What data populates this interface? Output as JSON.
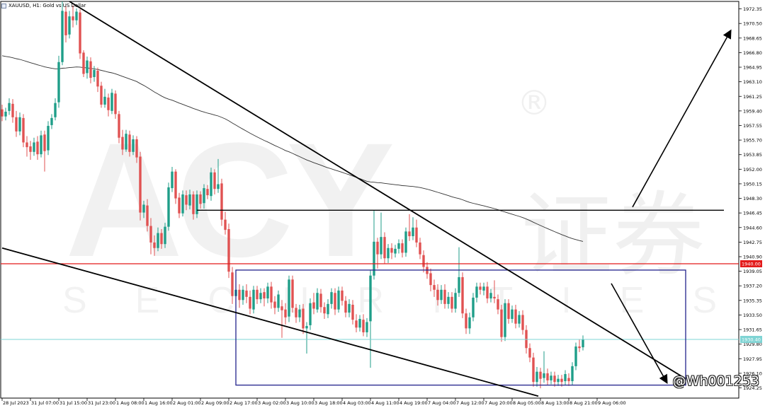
{
  "header": {
    "title": "XAUUSD, H1:  Gold vs US Dollar"
  },
  "watermark": {
    "brand": "ACY",
    "cn": "证券",
    "sub": "SECURITIES",
    "reg": "®",
    "user": "@Wh001253"
  },
  "colors": {
    "up": "#1f9e89",
    "down": "#e05252",
    "red_line": "#e31b1b",
    "box": "#22228c",
    "cyan_line": "#7fd4d4",
    "ma": "#333333",
    "trend": "#000000"
  },
  "chart_data": {
    "type": "candlestick",
    "symbol": "XAUUSD",
    "timeframe": "H1",
    "ylim": [
      1922.95,
      1973.3
    ],
    "y_ticks": [
      "1972.35",
      "1970.50",
      "1968.65",
      "1966.80",
      "1964.95",
      "1963.10",
      "1961.25",
      "1959.40",
      "1957.55",
      "1955.70",
      "1953.85",
      "1952.00",
      "1950.15",
      "1948.30",
      "1946.45",
      "1944.60",
      "1942.75",
      "1940.90",
      "1939.05",
      "1937.20",
      "1935.35",
      "1933.50",
      "1931.65",
      "1929.80",
      "1927.95",
      "1926.10",
      "1924.25"
    ],
    "x_ticks": [
      "28 Jul 2023",
      "31 Jul 07:00",
      "31 Jul 15:00",
      "31 Jul 23:00",
      "1 Aug 08:00",
      "1 Aug 16:00",
      "2 Aug 01:00",
      "2 Aug 09:00",
      "2 Aug 17:00",
      "3 Aug 02:00",
      "3 Aug 10:00",
      "3 Aug 18:00",
      "4 Aug 03:00",
      "4 Aug 11:00",
      "4 Aug 19:00",
      "7 Aug 04:00",
      "7 Aug 12:00",
      "7 Aug 20:00",
      "8 Aug 05:00",
      "8 Aug 13:00",
      "8 Aug 21:00",
      "9 Aug 06:00"
    ],
    "price_labels": [
      {
        "value": 1940.0,
        "text": "1940.00",
        "color": "red"
      },
      {
        "value": 1930.4,
        "text": "1930.40",
        "color": "cyan"
      }
    ],
    "levels": {
      "red_horizontal": 1940.0,
      "resistance": 1946.8,
      "current": 1930.4
    },
    "range_box": {
      "top": 1939.2,
      "bottom": 1924.6
    },
    "candles": [
      [
        1959.6,
        1958.7,
        1960.2,
        1958.1
      ],
      [
        1958.7,
        1959.3,
        1959.8,
        1958.2
      ],
      [
        1959.4,
        1960.4,
        1961.0,
        1958.9
      ],
      [
        1960.3,
        1958.6,
        1960.9,
        1957.9
      ],
      [
        1958.6,
        1956.8,
        1959.4,
        1956.1
      ],
      [
        1956.8,
        1958.6,
        1959.2,
        1956.3
      ],
      [
        1958.5,
        1955.4,
        1959.0,
        1954.8
      ],
      [
        1955.4,
        1954.8,
        1956.2,
        1953.6
      ],
      [
        1954.9,
        1954.2,
        1955.6,
        1953.2
      ],
      [
        1954.2,
        1955.4,
        1956.0,
        1953.7
      ],
      [
        1955.5,
        1953.9,
        1956.2,
        1953.2
      ],
      [
        1953.9,
        1956.3,
        1956.9,
        1953.5
      ],
      [
        1956.4,
        1954.3,
        1956.9,
        1951.7
      ],
      [
        1954.4,
        1957.5,
        1958.1,
        1953.8
      ],
      [
        1957.6,
        1958.5,
        1959.0,
        1957.1
      ],
      [
        1958.6,
        1960.4,
        1961.0,
        1958.2
      ],
      [
        1960.5,
        1965.6,
        1966.4,
        1959.8
      ],
      [
        1965.6,
        1972.1,
        1973.3,
        1965.2
      ],
      [
        1972.0,
        1969.0,
        1972.7,
        1968.1
      ],
      [
        1969.1,
        1971.4,
        1972.1,
        1968.6
      ],
      [
        1971.4,
        1970.9,
        1972.8,
        1970.0
      ],
      [
        1970.9,
        1972.0,
        1972.4,
        1970.3
      ],
      [
        1971.9,
        1966.7,
        1972.3,
        1966.0
      ],
      [
        1966.8,
        1964.1,
        1967.1,
        1963.7
      ],
      [
        1964.2,
        1965.8,
        1966.3,
        1963.5
      ],
      [
        1965.7,
        1963.6,
        1966.2,
        1962.9
      ],
      [
        1963.7,
        1964.6,
        1965.1,
        1963.1
      ],
      [
        1964.5,
        1962.5,
        1964.9,
        1961.8
      ],
      [
        1962.6,
        1960.2,
        1963.1,
        1959.8
      ],
      [
        1960.2,
        1961.2,
        1962.2,
        1959.8
      ],
      [
        1961.1,
        1959.5,
        1961.6,
        1958.7
      ],
      [
        1959.4,
        1961.7,
        1962.2,
        1959.0
      ],
      [
        1961.6,
        1959.0,
        1962.0,
        1958.4
      ],
      [
        1959.0,
        1956.0,
        1959.4,
        1955.3
      ],
      [
        1956.1,
        1954.5,
        1957.0,
        1953.8
      ],
      [
        1954.5,
        1956.5,
        1957.0,
        1954.2
      ],
      [
        1956.4,
        1954.2,
        1956.9,
        1953.6
      ],
      [
        1954.2,
        1955.8,
        1956.3,
        1953.8
      ],
      [
        1955.8,
        1953.5,
        1956.2,
        1952.8
      ],
      [
        1953.6,
        1946.5,
        1954.2,
        1945.5
      ],
      [
        1946.5,
        1947.5,
        1948.0,
        1945.8
      ],
      [
        1947.4,
        1944.8,
        1948.2,
        1944.1
      ],
      [
        1944.8,
        1942.7,
        1945.8,
        1941.2
      ],
      [
        1942.7,
        1942.0,
        1943.6,
        1941.0
      ],
      [
        1942.0,
        1943.9,
        1944.6,
        1941.6
      ],
      [
        1943.9,
        1942.5,
        1944.4,
        1941.9
      ],
      [
        1942.5,
        1944.7,
        1945.2,
        1942.0
      ],
      [
        1944.7,
        1949.7,
        1950.3,
        1944.2
      ],
      [
        1949.6,
        1951.7,
        1952.3,
        1949.1
      ],
      [
        1951.7,
        1948.3,
        1952.0,
        1947.6
      ],
      [
        1948.4,
        1946.4,
        1949.0,
        1945.8
      ],
      [
        1946.4,
        1948.8,
        1949.3,
        1946.0
      ],
      [
        1948.7,
        1947.5,
        1949.3,
        1946.8
      ],
      [
        1947.4,
        1948.8,
        1949.4,
        1946.9
      ],
      [
        1948.8,
        1946.3,
        1949.2,
        1945.6
      ],
      [
        1946.3,
        1948.8,
        1949.3,
        1945.8
      ],
      [
        1948.8,
        1947.6,
        1949.2,
        1947.0
      ],
      [
        1947.7,
        1949.6,
        1950.1,
        1947.0
      ],
      [
        1949.5,
        1948.7,
        1950.0,
        1948.2
      ],
      [
        1948.6,
        1951.6,
        1952.2,
        1948.0
      ],
      [
        1951.6,
        1949.5,
        1952.0,
        1948.8
      ],
      [
        1949.5,
        1950.1,
        1953.3,
        1949.0
      ],
      [
        1950.2,
        1945.6,
        1950.8,
        1944.8
      ],
      [
        1945.6,
        1944.3,
        1946.6,
        1943.7
      ],
      [
        1944.4,
        1939.0,
        1945.1,
        1938.2
      ],
      [
        1938.9,
        1935.9,
        1939.6,
        1934.9
      ],
      [
        1935.9,
        1936.7,
        1937.3,
        1935.2
      ],
      [
        1936.7,
        1935.4,
        1937.4,
        1934.4
      ],
      [
        1935.4,
        1936.7,
        1937.2,
        1934.8
      ],
      [
        1936.6,
        1935.8,
        1937.4,
        1935.0
      ],
      [
        1935.8,
        1934.3,
        1936.6,
        1933.6
      ],
      [
        1934.2,
        1936.7,
        1937.2,
        1933.7
      ],
      [
        1936.7,
        1935.5,
        1937.2,
        1934.9
      ],
      [
        1935.5,
        1936.3,
        1936.9,
        1935.0
      ],
      [
        1936.4,
        1935.6,
        1936.9,
        1934.6
      ],
      [
        1935.6,
        1937.1,
        1937.6,
        1935.0
      ],
      [
        1937.1,
        1935.1,
        1937.7,
        1934.3
      ],
      [
        1935.2,
        1934.4,
        1935.9,
        1933.6
      ],
      [
        1934.4,
        1936.1,
        1936.6,
        1933.9
      ],
      [
        1934.6,
        1934.1,
        1935.4,
        1930.6
      ],
      [
        1934.2,
        1933.2,
        1935.0,
        1932.3
      ],
      [
        1933.3,
        1938.0,
        1938.5,
        1932.6
      ],
      [
        1938.0,
        1934.4,
        1938.5,
        1933.8
      ],
      [
        1934.4,
        1933.2,
        1934.9,
        1932.5
      ],
      [
        1933.2,
        1934.2,
        1934.8,
        1932.6
      ],
      [
        1934.3,
        1931.8,
        1934.9,
        1931.1
      ],
      [
        1931.8,
        1932.1,
        1932.6,
        1928.6
      ],
      [
        1932.2,
        1935.0,
        1935.6,
        1931.6
      ],
      [
        1935.1,
        1934.3,
        1936.3,
        1933.6
      ],
      [
        1934.2,
        1936.3,
        1936.9,
        1933.8
      ],
      [
        1936.2,
        1934.5,
        1936.8,
        1933.8
      ],
      [
        1934.5,
        1933.7,
        1935.1,
        1933.0
      ],
      [
        1933.6,
        1934.9,
        1935.5,
        1933.1
      ],
      [
        1934.9,
        1936.4,
        1936.9,
        1934.3
      ],
      [
        1936.3,
        1934.2,
        1936.9,
        1933.5
      ],
      [
        1934.2,
        1936.6,
        1937.1,
        1933.8
      ],
      [
        1936.6,
        1935.3,
        1937.1,
        1934.7
      ],
      [
        1935.3,
        1933.8,
        1935.9,
        1933.2
      ],
      [
        1933.8,
        1934.9,
        1935.5,
        1933.2
      ],
      [
        1934.8,
        1932.9,
        1935.4,
        1932.3
      ],
      [
        1932.8,
        1931.9,
        1933.6,
        1931.3
      ],
      [
        1931.9,
        1933.0,
        1933.5,
        1931.4
      ],
      [
        1932.9,
        1931.3,
        1933.6,
        1930.8
      ],
      [
        1931.3,
        1932.6,
        1933.1,
        1930.7
      ],
      [
        1932.7,
        1938.5,
        1939.2,
        1926.8
      ],
      [
        1938.5,
        1942.8,
        1946.8,
        1938.0
      ],
      [
        1942.8,
        1941.2,
        1943.3,
        1939.4
      ],
      [
        1941.2,
        1943.4,
        1946.5,
        1940.6
      ],
      [
        1943.4,
        1940.7,
        1944.0,
        1940.0
      ],
      [
        1940.7,
        1942.0,
        1942.5,
        1940.1
      ],
      [
        1942.0,
        1941.4,
        1942.6,
        1940.6
      ],
      [
        1941.3,
        1941.9,
        1942.4,
        1940.8
      ],
      [
        1941.9,
        1942.6,
        1943.1,
        1941.3
      ],
      [
        1942.6,
        1941.4,
        1943.1,
        1940.8
      ],
      [
        1941.4,
        1944.1,
        1944.6,
        1940.9
      ],
      [
        1944.1,
        1943.5,
        1946.3,
        1942.9
      ],
      [
        1943.5,
        1944.6,
        1945.9,
        1943.0
      ],
      [
        1944.6,
        1942.7,
        1945.6,
        1942.1
      ],
      [
        1942.7,
        1941.2,
        1943.3,
        1940.6
      ],
      [
        1941.1,
        1939.6,
        1941.7,
        1938.9
      ],
      [
        1939.6,
        1938.7,
        1940.2,
        1938.1
      ],
      [
        1938.8,
        1937.3,
        1939.4,
        1936.5
      ],
      [
        1937.3,
        1936.7,
        1938.0,
        1935.8
      ],
      [
        1936.7,
        1935.4,
        1937.4,
        1934.7
      ],
      [
        1935.4,
        1936.7,
        1937.3,
        1934.9
      ],
      [
        1936.7,
        1934.9,
        1937.4,
        1934.3
      ],
      [
        1934.9,
        1935.8,
        1936.4,
        1934.3
      ],
      [
        1935.8,
        1934.3,
        1936.4,
        1933.8
      ],
      [
        1934.3,
        1936.3,
        1936.9,
        1933.8
      ],
      [
        1936.3,
        1938.3,
        1942.1,
        1935.8
      ],
      [
        1938.3,
        1933.7,
        1938.9,
        1933.1
      ],
      [
        1933.7,
        1931.8,
        1934.3,
        1931.1
      ],
      [
        1931.8,
        1933.2,
        1933.8,
        1931.1
      ],
      [
        1933.2,
        1935.7,
        1936.3,
        1932.7
      ],
      [
        1935.7,
        1937.1,
        1937.6,
        1935.1
      ],
      [
        1937.1,
        1936.7,
        1937.6,
        1936.1
      ],
      [
        1936.6,
        1937.1,
        1937.6,
        1936.0
      ],
      [
        1937.1,
        1935.6,
        1937.7,
        1935.0
      ],
      [
        1935.6,
        1936.3,
        1936.8,
        1935.1
      ],
      [
        1935.8,
        1935.6,
        1937.9,
        1935.0
      ],
      [
        1935.5,
        1934.2,
        1936.1,
        1933.6
      ],
      [
        1934.2,
        1930.7,
        1934.8,
        1930.1
      ],
      [
        1930.7,
        1935.0,
        1935.5,
        1930.2
      ],
      [
        1935.0,
        1933.0,
        1935.5,
        1932.4
      ],
      [
        1933.0,
        1934.2,
        1934.7,
        1932.5
      ],
      [
        1934.2,
        1932.4,
        1934.8,
        1931.8
      ],
      [
        1932.4,
        1933.5,
        1934.0,
        1931.9
      ],
      [
        1933.5,
        1931.6,
        1934.1,
        1931.0
      ],
      [
        1931.6,
        1929.3,
        1932.2,
        1928.6
      ],
      [
        1929.3,
        1928.1,
        1929.9,
        1927.5
      ],
      [
        1928.1,
        1925.0,
        1928.7,
        1924.4
      ],
      [
        1925.0,
        1926.3,
        1926.9,
        1924.4
      ],
      [
        1926.3,
        1925.4,
        1926.8,
        1924.2
      ],
      [
        1925.5,
        1926.1,
        1928.9,
        1924.9
      ],
      [
        1926.1,
        1925.2,
        1926.7,
        1924.6
      ],
      [
        1925.2,
        1925.8,
        1926.3,
        1924.7
      ],
      [
        1925.8,
        1925.0,
        1926.3,
        1924.4
      ],
      [
        1925.0,
        1925.4,
        1925.9,
        1924.5
      ],
      [
        1925.4,
        1925.0,
        1925.9,
        1924.4
      ],
      [
        1925.1,
        1926.0,
        1926.5,
        1924.6
      ],
      [
        1925.5,
        1925.1,
        1926.1,
        1924.5
      ],
      [
        1925.1,
        1927.0,
        1927.5,
        1924.6
      ],
      [
        1927.0,
        1929.5,
        1930.0,
        1926.5
      ],
      [
        1929.5,
        1929.3,
        1930.4,
        1928.8
      ],
      [
        1929.4,
        1930.4,
        1930.9,
        1929.0
      ]
    ]
  }
}
